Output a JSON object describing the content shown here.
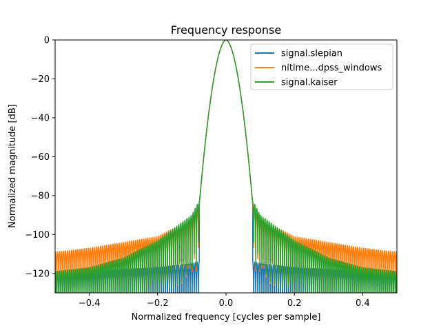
{
  "chart_data": {
    "type": "line",
    "title": "Frequency response",
    "xlabel": "Normalized frequency [cycles per sample]",
    "ylabel": "Normalized magnitude [dB]",
    "xlim": [
      -0.5,
      0.5
    ],
    "ylim": [
      -130,
      0
    ],
    "xticks": [
      -0.4,
      -0.2,
      0.0,
      0.2,
      0.4
    ],
    "xtick_labels": [
      "−0.4",
      "−0.2",
      "0.0",
      "0.2",
      "0.4"
    ],
    "yticks": [
      0,
      -20,
      -40,
      -60,
      -80,
      -100,
      -120
    ],
    "ytick_labels": [
      "0",
      "−20",
      "−40",
      "−60",
      "−80",
      "−100",
      "−120"
    ],
    "grid": false,
    "legend_position": "top-right",
    "main_lobe_halfwidth": 0.078,
    "series": [
      {
        "name": "signal.slepian",
        "color": "#1f77b4",
        "sidelobe_envelope": {
          "x": [
            0.08,
            0.1,
            0.2,
            0.3,
            0.4,
            0.5
          ],
          "y": [
            -114,
            -115,
            -117,
            -118,
            -119,
            -120
          ]
        }
      },
      {
        "name": "nitime...dpss_windows",
        "color": "#ff7f0e",
        "sidelobe_envelope": {
          "x": [
            0.08,
            0.1,
            0.2,
            0.3,
            0.4,
            0.5
          ],
          "y": [
            -86,
            -92,
            -101,
            -104,
            -107,
            -109
          ]
        }
      },
      {
        "name": "signal.kaiser",
        "color": "#2ca02c",
        "sidelobe_envelope": {
          "x": [
            0.08,
            0.1,
            0.2,
            0.3,
            0.4,
            0.5
          ],
          "y": [
            -83,
            -90,
            -103,
            -112,
            -117,
            -119
          ]
        }
      }
    ]
  }
}
